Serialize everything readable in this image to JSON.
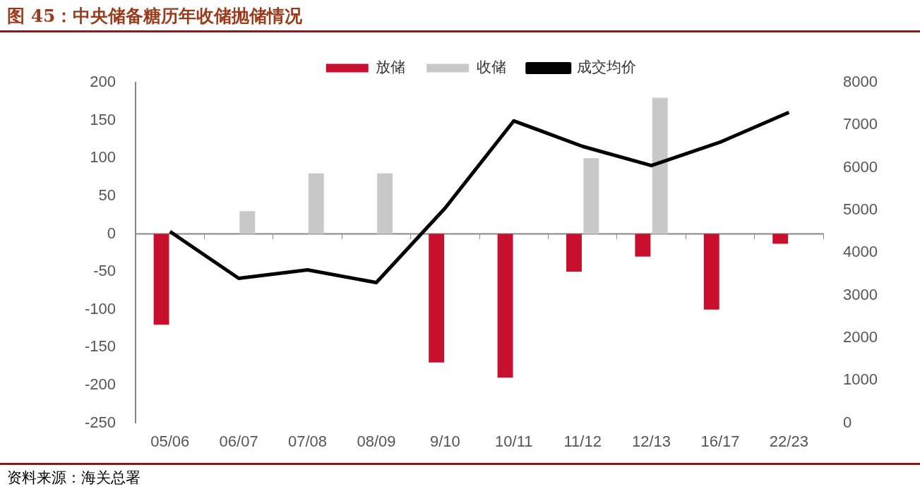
{
  "chart_data": {
    "type": "bar",
    "title": "图 45：中央储备糖历年收储抛储情况",
    "categories": [
      "05/06",
      "06/07",
      "07/08",
      "08/09",
      "9/10",
      "10/11",
      "11/12",
      "12/13",
      "16/17",
      "22/23"
    ],
    "series": [
      {
        "name": "放储",
        "color": "#c8102e",
        "values": [
          -120,
          null,
          null,
          null,
          -170,
          -190,
          -50,
          -30,
          -100,
          -13
        ]
      },
      {
        "name": "收储",
        "color": "#c8c8c8",
        "values": [
          null,
          30,
          80,
          80,
          null,
          null,
          100,
          180,
          null,
          null
        ]
      },
      {
        "name": "成交均价",
        "type": "line",
        "axis": "y2",
        "color": "#000000",
        "values": [
          4500,
          3400,
          3600,
          3300,
          5050,
          7100,
          6500,
          6050,
          6600,
          7300
        ]
      }
    ],
    "ylim": [
      -250,
      200
    ],
    "yticks": [
      -250,
      -200,
      -150,
      -100,
      -50,
      0,
      50,
      100,
      150,
      200
    ],
    "y2lim": [
      0,
      8000
    ],
    "y2ticks": [
      0,
      1000,
      2000,
      3000,
      4000,
      5000,
      6000,
      7000,
      8000
    ],
    "ref_lines": [
      {
        "axis": "y",
        "value": 0,
        "color": "#888888"
      }
    ],
    "grid": false,
    "legend": "top",
    "marker": "none",
    "line_style": "solid",
    "annotations": [
      "资料来源：海关总署"
    ]
  }
}
